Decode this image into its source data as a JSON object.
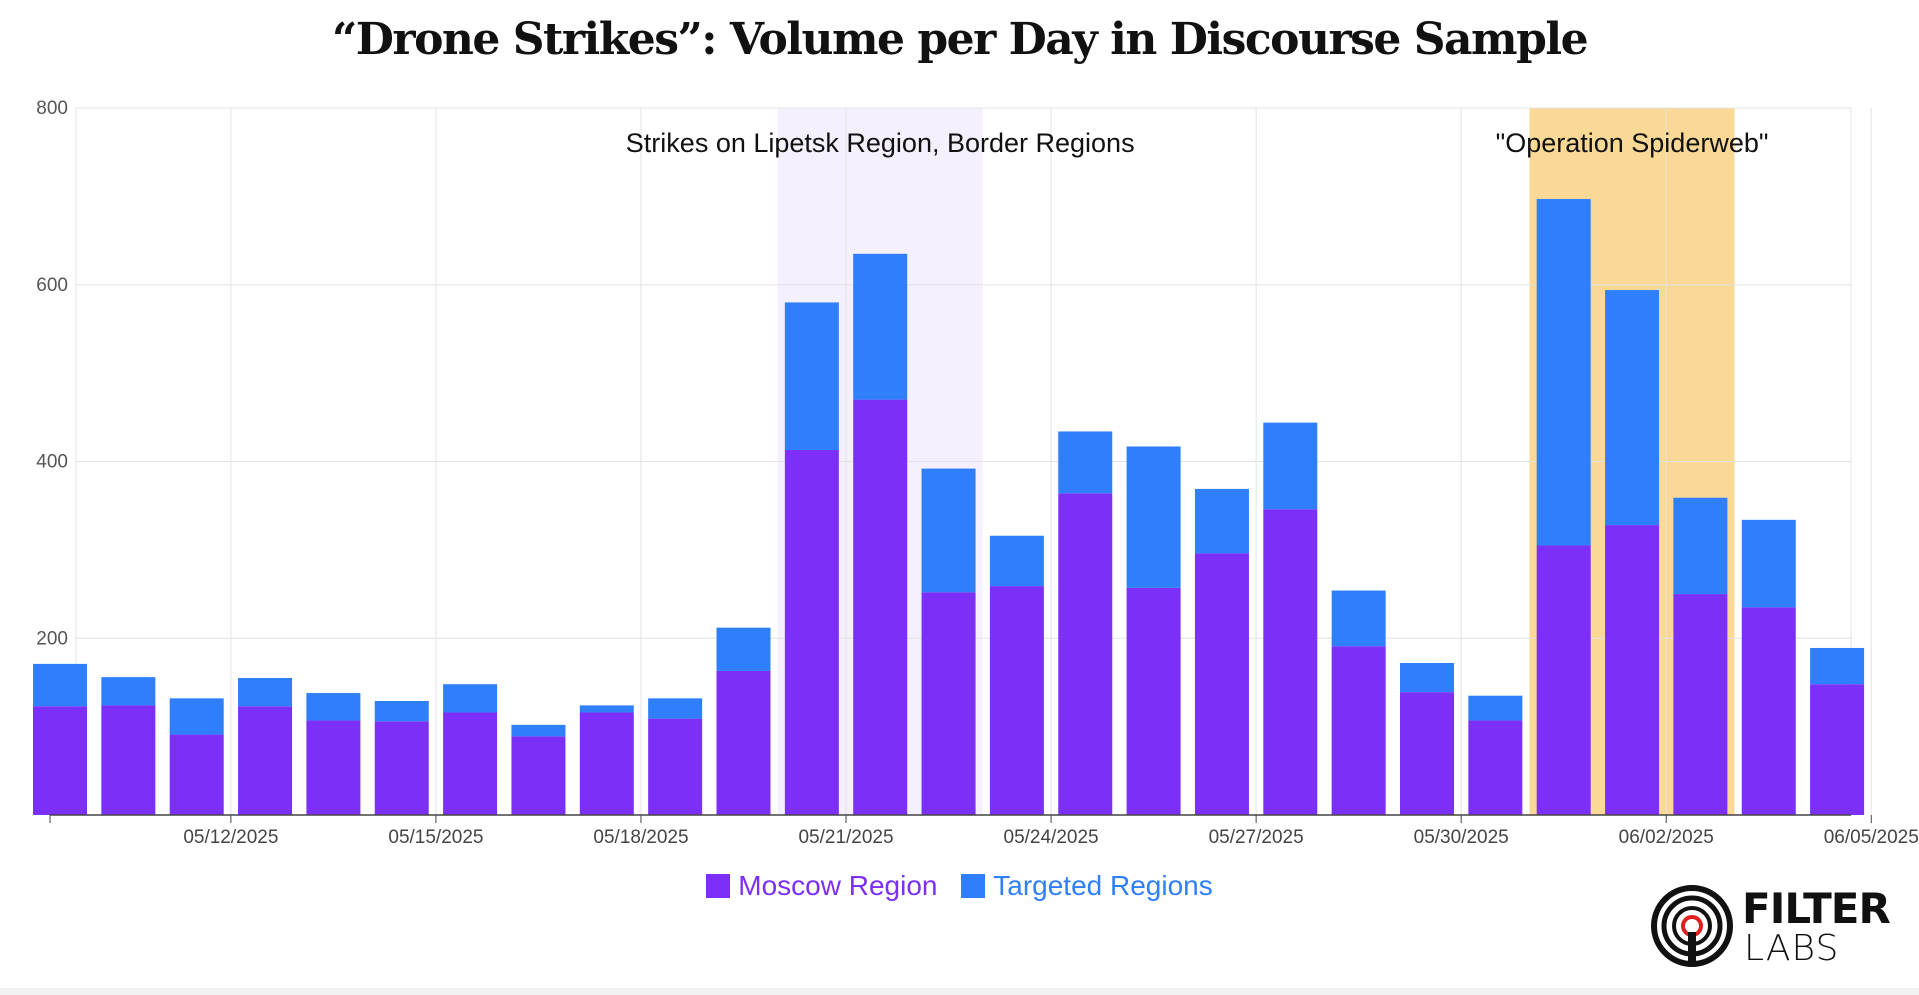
{
  "title": "“Drone Strikes”: Volume per Day in Discourse Sample",
  "logo": {
    "line1": "FILTER",
    "line2": "LABS"
  },
  "colors": {
    "moscow": "#7b2ff7",
    "targeted": "#2f7ffb",
    "highlight1": "#f5f0fd",
    "highlight2": "#f9d995",
    "grid": "#e3e3e3"
  },
  "chart_data": {
    "type": "bar",
    "stacked": true,
    "title": "“Drone Strikes”: Volume per Day in Discourse Sample",
    "xlabel": "",
    "ylabel": "",
    "ylim": [
      0,
      800
    ],
    "yticks": [
      200,
      400,
      600,
      800
    ],
    "grid": true,
    "legend_position": "bottom",
    "x_start": "05/10/2025",
    "x_tick_labels": [
      "05/12/2025",
      "05/15/2025",
      "05/18/2025",
      "05/21/2025",
      "05/24/2025",
      "05/27/2025",
      "05/30/2025",
      "06/02/2025",
      "06/05/2025"
    ],
    "categories": [
      "05/10/2025",
      "05/11/2025",
      "05/12/2025",
      "05/13/2025",
      "05/14/2025",
      "05/15/2025",
      "05/16/2025",
      "05/17/2025",
      "05/18/2025",
      "05/19/2025",
      "05/20/2025",
      "05/21/2025",
      "05/22/2025",
      "05/23/2025",
      "05/24/2025",
      "05/25/2025",
      "05/26/2025",
      "05/27/2025",
      "05/28/2025",
      "05/29/2025",
      "05/30/2025",
      "05/31/2025",
      "06/01/2025",
      "06/02/2025",
      "06/03/2025",
      "06/04/2025",
      "06/05/2025"
    ],
    "series": [
      {
        "name": "Moscow Region",
        "color": "#7b2ff7",
        "values": [
          123,
          124,
          91,
          123,
          107,
          106,
          116,
          89,
          116,
          109,
          163,
          413,
          470,
          252,
          259,
          364,
          257,
          296,
          346,
          191,
          139,
          107,
          305,
          328,
          250,
          235,
          148
        ]
      },
      {
        "name": "Targeted Regions",
        "color": "#2f7ffb",
        "values": [
          48,
          32,
          41,
          32,
          31,
          23,
          32,
          13,
          8,
          23,
          49,
          167,
          165,
          140,
          57,
          70,
          160,
          73,
          98,
          63,
          33,
          28,
          392,
          266,
          109,
          99,
          41
        ]
      }
    ],
    "highlights": [
      {
        "from": "05/20/2025",
        "to": "05/23/2025",
        "label": "Strikes on Lipetsk Region, Border Regions"
      },
      {
        "from": "05/31/2025",
        "to": "06/03/2025",
        "label": "\"Operation Spiderweb\""
      }
    ]
  }
}
